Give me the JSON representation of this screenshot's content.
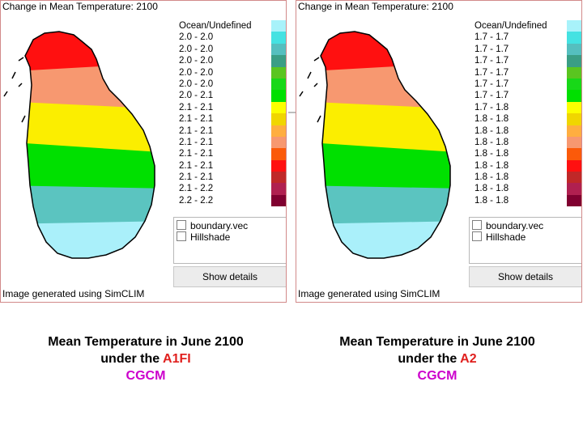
{
  "colors": {
    "ocean": "#ffffff",
    "bands": [
      "#ff1010",
      "#f79870",
      "#fbee00",
      "#00e000",
      "#5bc4c0",
      "#aaf0fa"
    ],
    "legend_swatches": [
      "#a8f2fa",
      "#44e2e2",
      "#55bfbf",
      "#3a9e85",
      "#5ac520",
      "#18d818",
      "#00e000",
      "#fbff00",
      "#f0d600",
      "#ffae40",
      "#f79870",
      "#fb5a0a",
      "#ff1010",
      "#c02828",
      "#b02050",
      "#800030"
    ],
    "caption_accent": "#e0201e",
    "caption_model": "#cc00cc"
  },
  "panels": [
    {
      "title": "Change in Mean Temperature: 2100",
      "legend": [
        "Ocean/Undefined",
        "2.0 - 2.0",
        "2.0 - 2.0",
        "2.0 - 2.0",
        "2.0 - 2.0",
        "2.0 - 2.0",
        "2.0 - 2.1",
        "2.1 - 2.1",
        "2.1 - 2.1",
        "2.1 - 2.1",
        "2.1 - 2.1",
        "2.1 - 2.1",
        "2.1 - 2.1",
        "2.1 - 2.1",
        "2.1 - 2.2",
        "2.2 - 2.2"
      ],
      "layers": [
        "boundary.vec",
        "Hillshade"
      ],
      "details_button": "Show details",
      "footer": "Image generated using SimCLIM"
    },
    {
      "title": "Change in Mean Temperature: 2100",
      "legend": [
        "Ocean/Undefined",
        "1.7 - 1.7",
        "1.7 - 1.7",
        "1.7 - 1.7",
        "1.7 - 1.7",
        "1.7 - 1.7",
        "1.7 - 1.7",
        "1.7 - 1.8",
        "1.8 - 1.8",
        "1.8 - 1.8",
        "1.8 - 1.8",
        "1.8 - 1.8",
        "1.8 - 1.8",
        "1.8 - 1.8",
        "1.8 - 1.8",
        "1.8 - 1.8"
      ],
      "layers": [
        "boundary.vec",
        "Hillshade"
      ],
      "details_button": "Show details",
      "footer": "Image generated using SimCLIM"
    }
  ],
  "captions": [
    {
      "line1": "Mean Temperature in June 2100",
      "line2_prefix": "under the ",
      "scenario": "A1FI",
      "model": "CGCM"
    },
    {
      "line1": "Mean Temperature in June 2100",
      "line2_prefix": "under the ",
      "scenario": "A2",
      "model": "CGCM"
    }
  ]
}
